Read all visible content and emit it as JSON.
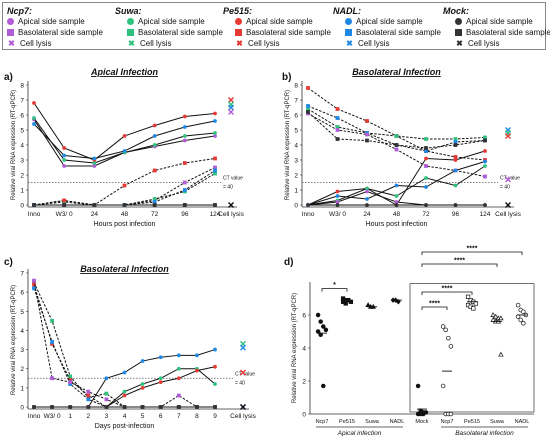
{
  "legend": {
    "groups": [
      {
        "name": "Ncp7:",
        "color": "#b05cd6",
        "items": [
          "Apical side sample",
          "Basolateral side sample",
          "Cell lysis"
        ]
      },
      {
        "name": "Suwa:",
        "color": "#2ec27e",
        "items": [
          "Apical side sample",
          "Basolateral side sample",
          "Cell lysis"
        ]
      },
      {
        "name": "Pe515:",
        "color": "#e53935",
        "items": [
          "Apical side sample",
          "Basolateral side sample",
          "Cell lysis"
        ]
      },
      {
        "name": "NADL:",
        "color": "#1e88e5",
        "items": [
          "Apical side sample",
          "Basolateral side sample",
          "Cell lysis"
        ]
      },
      {
        "name": "Mock:",
        "color": "#333333",
        "items": [
          "Apical side sample",
          "Basolateral side sample",
          "Cell lysis"
        ]
      }
    ],
    "symbols": [
      "circle",
      "square",
      "x"
    ]
  },
  "chart_data": [
    {
      "panel": "a)",
      "type": "line",
      "title": "Apical Infection",
      "xlabel": "Hours post infection",
      "ylabel": "Relative viral RNA expression (RT-qPCR)",
      "categories": [
        "Inno",
        "W3/ 0",
        "24",
        "48",
        "72",
        "96",
        "124"
      ],
      "extra_category": "Cell lysis",
      "ylim": [
        0,
        8
      ],
      "yticks": [
        0,
        1,
        2,
        3,
        4,
        5,
        6,
        7,
        8
      ],
      "threshold": {
        "value": 1.5,
        "label": "CT value = 40"
      },
      "series": [
        {
          "group": "Ncp7",
          "sample": "apical",
          "values": [
            5.7,
            2.6,
            2.6,
            3.5,
            3.9,
            4.3,
            4.6
          ]
        },
        {
          "group": "Suwa",
          "sample": "apical",
          "values": [
            5.8,
            3.0,
            2.8,
            3.5,
            4.0,
            4.6,
            4.8
          ]
        },
        {
          "group": "Pe515",
          "sample": "apical",
          "values": [
            6.8,
            3.8,
            3.0,
            4.6,
            5.3,
            5.9,
            6.1
          ]
        },
        {
          "group": "NADL",
          "sample": "apical",
          "values": [
            5.4,
            3.3,
            3.1,
            3.6,
            4.6,
            5.2,
            5.6
          ]
        },
        {
          "group": "Mock",
          "sample": "apical",
          "values": [
            0,
            0,
            0,
            0,
            0,
            0,
            0
          ]
        },
        {
          "group": "Ncp7",
          "sample": "basolateral",
          "values": [
            0,
            0.3,
            0,
            0,
            0.3,
            1.5,
            2.5
          ]
        },
        {
          "group": "Suwa",
          "sample": "basolateral",
          "values": [
            0,
            0.2,
            0,
            0,
            0.4,
            0.9,
            2.1
          ]
        },
        {
          "group": "Pe515",
          "sample": "basolateral",
          "values": [
            0,
            0.3,
            0,
            1.3,
            2.3,
            2.8,
            3.1
          ]
        },
        {
          "group": "NADL",
          "sample": "basolateral",
          "values": [
            0,
            0,
            0,
            0,
            0.2,
            1.0,
            2.3
          ]
        },
        {
          "group": "Mock",
          "sample": "basolateral",
          "values": [
            0,
            0,
            0,
            0,
            0,
            0,
            0
          ]
        }
      ],
      "cell_lysis": {
        "Pe515": 7.0,
        "Suwa": 6.7,
        "NADL": 6.5,
        "Ncp7": 6.2,
        "Mock": 0
      }
    },
    {
      "panel": "b)",
      "type": "line",
      "title": "Basolateral Infection",
      "xlabel": "Hours post infection",
      "ylabel": "Relative viral RNA expression (RT-qPCR)",
      "categories": [
        "Inno",
        "W3/ 0",
        "24",
        "48",
        "72",
        "96",
        "124"
      ],
      "extra_category": "Cell lysis",
      "ylim": [
        0,
        8
      ],
      "yticks": [
        0,
        1,
        2,
        3,
        4,
        5,
        6,
        7,
        8
      ],
      "threshold": {
        "value": 1.5,
        "label": "CT value = 40"
      },
      "series": [
        {
          "group": "Pe515",
          "sample": "basolateral",
          "values": [
            7.8,
            6.4,
            5.6,
            4.6,
            3.6,
            3.2,
            3.0
          ]
        },
        {
          "group": "Suwa",
          "sample": "basolateral",
          "values": [
            6.4,
            5.2,
            4.8,
            4.6,
            4.4,
            4.4,
            4.5
          ]
        },
        {
          "group": "NADL",
          "sample": "basolateral",
          "values": [
            6.6,
            5.8,
            4.8,
            4.0,
            3.6,
            4.2,
            4.3
          ]
        },
        {
          "group": "Ncp7",
          "sample": "basolateral",
          "values": [
            6.1,
            5.0,
            4.7,
            3.7,
            2.6,
            2.3,
            1.9
          ]
        },
        {
          "group": "Mock",
          "sample": "basolateral",
          "values": [
            6.2,
            4.4,
            4.3,
            4.0,
            3.8,
            4.0,
            4.3
          ]
        },
        {
          "group": "Pe515",
          "sample": "apical",
          "values": [
            0,
            0.9,
            1.1,
            0,
            3.1,
            3.0,
            3.6
          ]
        },
        {
          "group": "NADL",
          "sample": "apical",
          "values": [
            0,
            0.6,
            0.4,
            1.3,
            1.2,
            2.3,
            2.9
          ]
        },
        {
          "group": "Suwa",
          "sample": "apical",
          "values": [
            0,
            0.3,
            1.1,
            0.6,
            1.8,
            1.3,
            2.6
          ]
        },
        {
          "group": "Ncp7",
          "sample": "apical",
          "values": [
            0,
            0.2,
            0.9,
            0.2,
            0,
            0,
            0
          ]
        },
        {
          "group": "Mock",
          "sample": "apical",
          "values": [
            0,
            0,
            0,
            0,
            0,
            0,
            0
          ]
        }
      ],
      "cell_lysis": {
        "NADL": 5.0,
        "Suwa": 4.8,
        "Pe515": 4.6,
        "Ncp7": 1.7,
        "Mock": 0
      }
    },
    {
      "panel": "c)",
      "type": "line",
      "title": "Basolateral Infection",
      "xlabel": "Days post-infection",
      "ylabel": "Relative viral RNA expression (RT-qPCR)",
      "categories": [
        "Inno",
        "W3/ 0",
        "1",
        "2",
        "3",
        "4",
        "5",
        "6",
        "7",
        "8",
        "9"
      ],
      "extra_category": "Cell lysis",
      "ylim": [
        0,
        7
      ],
      "yticks": [
        0,
        1,
        2,
        3,
        4,
        5,
        6,
        7
      ],
      "threshold": {
        "value": 1.5,
        "label": "CT value = 40"
      },
      "series": [
        {
          "group": "Suwa",
          "sample": "basolateral",
          "values": [
            6.5,
            4.5,
            1.6,
            0.5,
            0.7,
            0,
            0,
            0,
            0,
            0,
            0
          ]
        },
        {
          "group": "Pe515",
          "sample": "basolateral",
          "values": [
            6.4,
            3.3,
            1.4,
            0.6,
            0,
            0,
            0,
            0,
            0,
            0,
            0
          ]
        },
        {
          "group": "NADL",
          "sample": "basolateral",
          "values": [
            6.2,
            3.4,
            1.2,
            0.4,
            0,
            0,
            0,
            0,
            0,
            0,
            0
          ]
        },
        {
          "group": "Ncp7",
          "sample": "basolateral",
          "values": [
            6.6,
            1.5,
            1.3,
            0.8,
            0.4,
            0,
            0,
            0,
            0.6,
            0,
            0
          ]
        },
        {
          "group": "Mock",
          "sample": "basolateral",
          "values": [
            0,
            0,
            0,
            0,
            0,
            0,
            0,
            0,
            0,
            0,
            0
          ]
        },
        {
          "group": "NADL",
          "sample": "apical",
          "values": [
            0,
            0,
            0,
            0,
            1.5,
            1.8,
            2.4,
            2.6,
            2.7,
            2.7,
            3.0
          ]
        },
        {
          "group": "Suwa",
          "sample": "apical",
          "values": [
            0,
            0,
            0,
            0,
            0,
            0.8,
            1.2,
            1.5,
            2.0,
            2.0,
            1.2
          ]
        },
        {
          "group": "Pe515",
          "sample": "apical",
          "values": [
            0,
            0,
            0,
            0,
            0,
            0.6,
            1.0,
            1.3,
            1.5,
            1.9,
            2.1
          ]
        },
        {
          "group": "Ncp7",
          "sample": "apical",
          "values": [
            0,
            0,
            0,
            0,
            0,
            0,
            0,
            0,
            0,
            0,
            0
          ]
        },
        {
          "group": "Mock",
          "sample": "apical",
          "values": [
            0,
            0,
            0,
            0,
            0,
            0,
            0,
            0,
            0,
            0,
            0
          ]
        }
      ],
      "cell_lysis": {
        "Suwa": 3.3,
        "NADL": 3.1,
        "Pe515": 1.8,
        "Ncp7": 0,
        "Mock": 0
      }
    },
    {
      "panel": "d)",
      "type": "scatter",
      "ylabel": "Relative viral RNA expression (RT-qPCR)",
      "ylim": [
        0,
        8
      ],
      "yticks": [
        0,
        2,
        4,
        6
      ],
      "categories": [
        "Ncp7",
        "Pe515",
        "Suwa",
        "NADL",
        "Mock",
        "Ncp7",
        "Pe515",
        "Suwa",
        "NADL"
      ],
      "group_labels": [
        "Apical infection",
        "Basolateral infection"
      ],
      "points": [
        {
          "cat": 0,
          "marker": "filled-circle",
          "values": [
            6.0,
            5.6,
            5.3,
            5.1,
            5.0,
            4.8,
            1.7
          ]
        },
        {
          "cat": 1,
          "marker": "filled-square",
          "values": [
            7.0,
            6.9,
            6.9,
            6.8,
            6.8,
            6.7
          ]
        },
        {
          "cat": 2,
          "marker": "filled-triangle",
          "values": [
            6.6,
            6.5,
            6.5
          ]
        },
        {
          "cat": 3,
          "marker": "filled-diamond",
          "values": [
            6.9,
            6.9,
            6.8
          ]
        },
        {
          "cat": 4,
          "marker": "filled-circle",
          "values": [
            1.7,
            0.2,
            0.1,
            0.1,
            0.0,
            0.0,
            0.0
          ]
        },
        {
          "cat": 5,
          "marker": "open-circle",
          "values": [
            5.3,
            5.1,
            4.6,
            4.1,
            1.7,
            0.0,
            0.0,
            0.0
          ]
        },
        {
          "cat": 6,
          "marker": "open-square",
          "values": [
            7.1,
            6.9,
            6.8,
            6.7,
            6.6,
            6.5,
            6.4
          ]
        },
        {
          "cat": 7,
          "marker": "open-triangle",
          "values": [
            6.0,
            5.9,
            5.8,
            5.8,
            5.7,
            5.6,
            5.6,
            3.6
          ]
        },
        {
          "cat": 8,
          "marker": "open-circle",
          "values": [
            6.6,
            6.3,
            6.2,
            6.0,
            5.9,
            5.7,
            5.5
          ]
        }
      ],
      "means": [
        4.9,
        6.8,
        6.5,
        6.9,
        0.3,
        2.6,
        6.8,
        5.6,
        6.0
      ],
      "significance": [
        {
          "from": 0,
          "to": 1,
          "label": "*"
        },
        {
          "from": 4,
          "to": 5,
          "label": "****"
        },
        {
          "from": 4,
          "to": 6,
          "label": "****"
        },
        {
          "from": 4,
          "to": 7,
          "label": "****"
        },
        {
          "from": 4,
          "to": 8,
          "label": "****"
        }
      ]
    }
  ]
}
